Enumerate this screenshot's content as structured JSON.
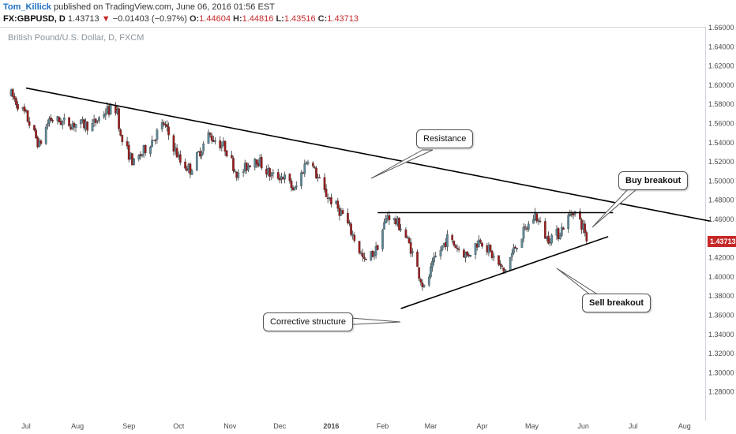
{
  "header": {
    "author": "Tom_Killick",
    "published": "published on TradingView.com, June 06, 2016 01:56 EST",
    "symbol": "FX:GBPUSD, D",
    "last": "1.43713",
    "change": "−0.01403 (−0.97%)",
    "open_label": "O:",
    "open": "1.44604",
    "high_label": "H:",
    "high": "1.44816",
    "low_label": "L:",
    "low": "1.43516",
    "close_label": "C:",
    "close": "1.43713"
  },
  "watermark": "British Pound/U.S. Dollar, D, FXCM",
  "price_badge": "1.43713",
  "callouts": {
    "resistance": "Resistance",
    "buy": "Buy breakout",
    "sell": "Sell breakout",
    "corrective": "Corrective structure"
  },
  "colors": {
    "up": "#5e8a99",
    "down": "#9b1c1c",
    "badge": "#c62828",
    "line": "#000000"
  },
  "chart_data": {
    "type": "candlestick",
    "y_ticks": [
      "1.66000",
      "1.64000",
      "1.62000",
      "1.60000",
      "1.58000",
      "1.56000",
      "1.54000",
      "1.52000",
      "1.50000",
      "1.48000",
      "1.46000",
      "1.44000",
      "1.42000",
      "1.40000",
      "1.38000",
      "1.36000",
      "1.34000",
      "1.32000",
      "1.30000",
      "1.28000"
    ],
    "ylim": [
      1.275,
      1.67
    ],
    "x_ticks": [
      "Jul",
      "Aug",
      "Sep",
      "Oct",
      "Nov",
      "Dec",
      "2016",
      "Feb",
      "Mar",
      "Apr",
      "May",
      "Jun",
      "Jul",
      "Aug"
    ],
    "x_tick_dates": [
      "2015-07-01",
      "2015-08-01",
      "2015-09-01",
      "2015-10-01",
      "2015-11-01",
      "2015-12-01",
      "2016-01-01",
      "2016-02-01",
      "2016-03-01",
      "2016-04-01",
      "2016-05-01",
      "2016-06-01",
      "2016-07-01",
      "2016-08-01"
    ],
    "price_path": [
      [
        "2015-06-22",
        1.59
      ],
      [
        "2015-07-01",
        1.568
      ],
      [
        "2015-07-09",
        1.537
      ],
      [
        "2015-07-15",
        1.565
      ],
      [
        "2015-07-27",
        1.56
      ],
      [
        "2015-08-10",
        1.558
      ],
      [
        "2015-08-18",
        1.573
      ],
      [
        "2015-08-25",
        1.575
      ],
      [
        "2015-08-27",
        1.545
      ],
      [
        "2015-09-04",
        1.518
      ],
      [
        "2015-09-16",
        1.545
      ],
      [
        "2015-09-22",
        1.56
      ],
      [
        "2015-10-02",
        1.52
      ],
      [
        "2015-10-08",
        1.512
      ],
      [
        "2015-10-19",
        1.548
      ],
      [
        "2015-10-29",
        1.535
      ],
      [
        "2015-11-06",
        1.505
      ],
      [
        "2015-11-16",
        1.525
      ],
      [
        "2015-11-26",
        1.505
      ],
      [
        "2015-12-03",
        1.505
      ],
      [
        "2015-12-10",
        1.49
      ],
      [
        "2015-12-18",
        1.525
      ],
      [
        "2015-12-28",
        1.488
      ],
      [
        "2016-01-08",
        1.465
      ],
      [
        "2016-01-15",
        1.44
      ],
      [
        "2016-01-21",
        1.415
      ],
      [
        "2016-01-28",
        1.428
      ],
      [
        "2016-02-04",
        1.465
      ],
      [
        "2016-02-12",
        1.452
      ],
      [
        "2016-02-18",
        1.43
      ],
      [
        "2016-02-26",
        1.387
      ],
      [
        "2016-03-04",
        1.42
      ],
      [
        "2016-03-11",
        1.44
      ],
      [
        "2016-03-23",
        1.422
      ],
      [
        "2016-03-31",
        1.44
      ],
      [
        "2016-04-06",
        1.425
      ],
      [
        "2016-04-14",
        1.405
      ],
      [
        "2016-04-22",
        1.435
      ],
      [
        "2016-05-03",
        1.465
      ],
      [
        "2016-05-10",
        1.44
      ],
      [
        "2016-05-17",
        1.445
      ],
      [
        "2016-05-26",
        1.47
      ],
      [
        "2016-06-02",
        1.448
      ],
      [
        "2016-06-03",
        1.437
      ]
    ],
    "last_close": 1.43713,
    "trendlines": [
      {
        "name": "resistance",
        "from": [
          "2015-07-01",
          1.597
        ],
        "to": [
          "2016-08-17",
          1.458
        ]
      },
      {
        "name": "horizontal",
        "from": [
          "2016-01-29",
          1.467
        ],
        "to": [
          "2016-06-19",
          1.467
        ]
      },
      {
        "name": "support",
        "from": [
          "2016-02-12",
          1.367
        ],
        "to": [
          "2016-06-16",
          1.442
        ]
      }
    ]
  }
}
